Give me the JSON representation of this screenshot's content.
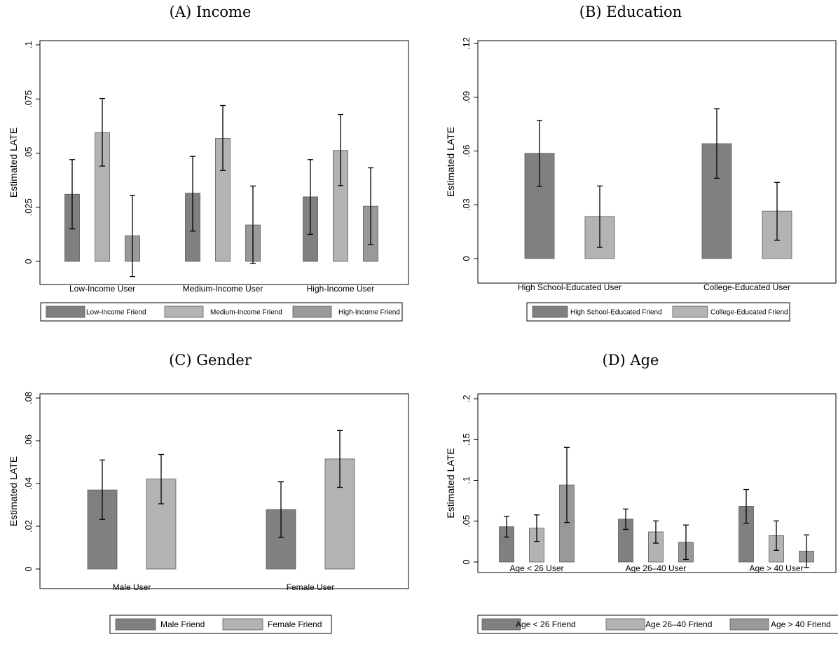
{
  "colors": {
    "dark": "#808080",
    "light": "#b3b3b3",
    "mid": "#999999"
  },
  "chart_data": [
    {
      "type": "bar",
      "title": "(A) Income",
      "ylabel": "Estimated LATE",
      "ylim": [
        0,
        0.1
      ],
      "yticks": [
        0,
        0.025,
        0.05,
        0.075,
        0.1
      ],
      "ytick_labels": [
        "0",
        ".025",
        ".05",
        ".075",
        ".1"
      ],
      "categories": [
        "Low-Income User",
        "Medium-Income User",
        "High-Income User"
      ],
      "series": [
        {
          "name": "Low-Income Friend",
          "color": "dark",
          "values": [
            0.031,
            0.0315,
            0.0298
          ],
          "ci_low": [
            0.015,
            0.014,
            0.0125
          ],
          "ci_high": [
            0.047,
            0.0485,
            0.047
          ]
        },
        {
          "name": "Medium-Income Friend",
          "color": "light",
          "values": [
            0.0595,
            0.0568,
            0.0512
          ],
          "ci_low": [
            0.044,
            0.042,
            0.035
          ],
          "ci_high": [
            0.0752,
            0.072,
            0.0678
          ]
        },
        {
          "name": "High-Income Friend",
          "color": "mid",
          "values": [
            0.0118,
            0.0168,
            0.0255
          ],
          "ci_low": [
            -0.007,
            -0.001,
            0.0078
          ],
          "ci_high": [
            0.0305,
            0.0348,
            0.0432
          ]
        }
      ],
      "legend_position": "bottom"
    },
    {
      "type": "bar",
      "title": "(B) Education",
      "ylabel": "Estimated LATE",
      "ylim": [
        0,
        0.12
      ],
      "yticks": [
        0,
        0.03,
        0.06,
        0.09,
        0.12
      ],
      "ytick_labels": [
        "0",
        ".03",
        ".06",
        ".09",
        ".12"
      ],
      "categories": [
        "High School-Educated User",
        "College-Educated User"
      ],
      "series": [
        {
          "name": "High School-Educated Friend",
          "color": "dark",
          "values": [
            0.0587,
            0.0641
          ],
          "ci_low": [
            0.0403,
            0.0448
          ],
          "ci_high": [
            0.0771,
            0.0836
          ]
        },
        {
          "name": "College-Educated Friend",
          "color": "light",
          "values": [
            0.0235,
            0.0265
          ],
          "ci_low": [
            0.0062,
            0.0102
          ],
          "ci_high": [
            0.0405,
            0.0425
          ]
        }
      ],
      "legend_position": "bottom"
    },
    {
      "type": "bar",
      "title": "(C) Gender",
      "ylabel": "Estimated LATE",
      "ylim": [
        0,
        0.08
      ],
      "yticks": [
        0,
        0.02,
        0.04,
        0.06,
        0.08
      ],
      "ytick_labels": [
        "0",
        ".02",
        ".04",
        ".06",
        ".08"
      ],
      "categories": [
        "Male User",
        "Female User"
      ],
      "series": [
        {
          "name": "Male Friend",
          "color": "dark",
          "values": [
            0.037,
            0.0278
          ],
          "ci_low": [
            0.0232,
            0.0148
          ],
          "ci_high": [
            0.051,
            0.0408
          ]
        },
        {
          "name": "Female Friend",
          "color": "light",
          "values": [
            0.0421,
            0.0515
          ],
          "ci_low": [
            0.0305,
            0.0382
          ],
          "ci_high": [
            0.0536,
            0.0648
          ]
        }
      ],
      "legend_position": "bottom"
    },
    {
      "type": "bar",
      "title": "(D) Age",
      "ylabel": "Estimated LATE",
      "ylim": [
        0,
        0.2
      ],
      "yticks": [
        0,
        0.05,
        0.1,
        0.15,
        0.2
      ],
      "ytick_labels": [
        "0",
        ".05",
        ".1",
        ".15",
        ".2"
      ],
      "categories": [
        "Age < 26 User",
        "Age 26–40 User",
        "Age > 40 User"
      ],
      "series": [
        {
          "name": "Age < 26 Friend",
          "color": "dark",
          "values": [
            0.0432,
            0.0525,
            0.0683
          ],
          "ci_low": [
            0.0305,
            0.0399,
            0.0475
          ],
          "ci_high": [
            0.0558,
            0.0649,
            0.0888
          ]
        },
        {
          "name": "Age 26–40 Friend",
          "color": "light",
          "values": [
            0.0415,
            0.0369,
            0.0323
          ],
          "ci_low": [
            0.0252,
            0.0231,
            0.0143
          ],
          "ci_high": [
            0.0577,
            0.0503,
            0.0503
          ]
        },
        {
          "name": "Age > 40 Friend",
          "color": "mid",
          "values": [
            0.0943,
            0.0242,
            0.0133
          ],
          "ci_low": [
            0.0483,
            0.0031,
            -0.0068
          ],
          "ci_high": [
            0.1404,
            0.0453,
            0.0332
          ]
        }
      ],
      "legend_position": "bottom"
    }
  ]
}
